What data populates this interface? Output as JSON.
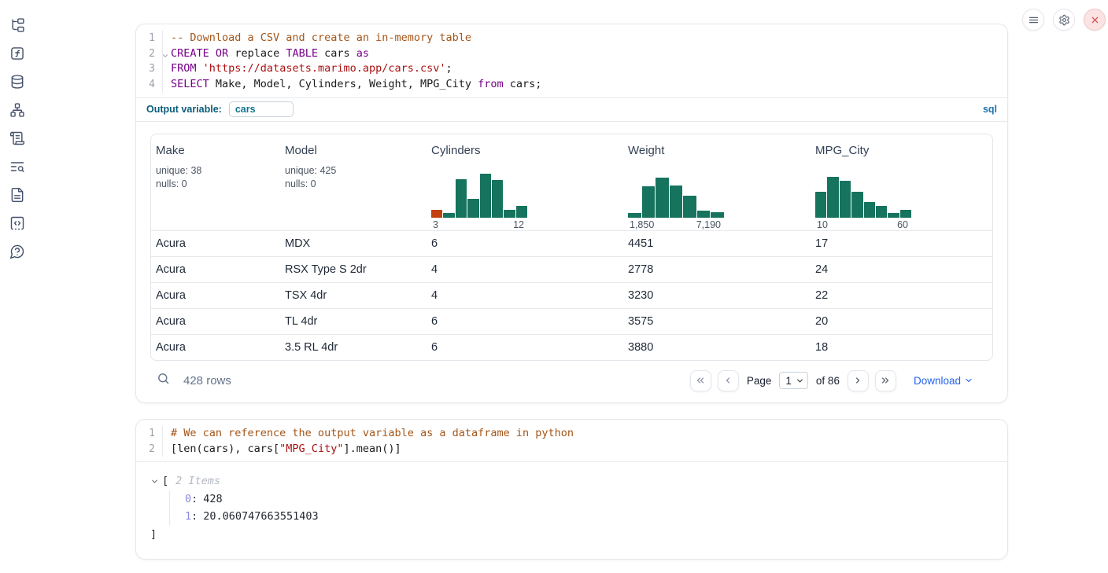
{
  "colors": {
    "hist_green": "#16735e",
    "hist_orange": "#c2410c",
    "syntax_keyword": "#770088",
    "syntax_string": "#aa1111",
    "syntax_comment": "#a35518",
    "accent_blue": "#2563eb",
    "outvar_teal": "#0e7490"
  },
  "sidebar": {
    "items": [
      {
        "name": "file-explorer"
      },
      {
        "name": "variables"
      },
      {
        "name": "datasources"
      },
      {
        "name": "dependency-graph"
      },
      {
        "name": "logs"
      },
      {
        "name": "outline-search"
      },
      {
        "name": "documentation"
      },
      {
        "name": "snippets"
      },
      {
        "name": "help"
      }
    ]
  },
  "sql_cell": {
    "lines": [
      {
        "num": "1",
        "tokens": [
          {
            "c": "c",
            "t": "-- Download a CSV and create an in-memory table"
          }
        ]
      },
      {
        "num": "2",
        "tokens": [
          {
            "c": "k",
            "t": "CREATE"
          },
          {
            "c": "p",
            "t": " "
          },
          {
            "c": "k",
            "t": "OR"
          },
          {
            "c": "p",
            "t": " replace "
          },
          {
            "c": "k",
            "t": "TABLE"
          },
          {
            "c": "p",
            "t": " cars "
          },
          {
            "c": "k",
            "t": "as"
          }
        ]
      },
      {
        "num": "3",
        "tokens": [
          {
            "c": "k",
            "t": "FROM"
          },
          {
            "c": "p",
            "t": " "
          },
          {
            "c": "s",
            "t": "'https://datasets.marimo.app/cars.csv'"
          },
          {
            "c": "p",
            "t": ";"
          }
        ]
      },
      {
        "num": "4",
        "tokens": [
          {
            "c": "k",
            "t": "SELECT"
          },
          {
            "c": "p",
            "t": " Make, Model, Cylinders, Weight, MPG_City "
          },
          {
            "c": "k",
            "t": "from"
          },
          {
            "c": "p",
            "t": " cars;"
          }
        ]
      }
    ],
    "output_variable_label": "Output variable:",
    "output_variable_value": "cars",
    "language_tag": "sql"
  },
  "chart_data": [
    {
      "type": "bar",
      "title": "Cylinders",
      "x_min_label": "3",
      "x_max_label": "12",
      "bars": [
        {
          "h": 0.18,
          "color": "#c2410c"
        },
        {
          "h": 0.1,
          "color": "#16735e"
        },
        {
          "h": 0.88,
          "color": "#16735e"
        },
        {
          "h": 0.42,
          "color": "#16735e"
        },
        {
          "h": 1.0,
          "color": "#16735e"
        },
        {
          "h": 0.85,
          "color": "#16735e"
        },
        {
          "h": 0.18,
          "color": "#16735e"
        },
        {
          "h": 0.26,
          "color": "#16735e"
        }
      ]
    },
    {
      "type": "bar",
      "title": "Weight",
      "x_min_label": "1,850",
      "x_max_label": "7,190",
      "bars": [
        {
          "h": 0.1,
          "color": "#16735e"
        },
        {
          "h": 0.72,
          "color": "#16735e"
        },
        {
          "h": 0.9,
          "color": "#16735e"
        },
        {
          "h": 0.73,
          "color": "#16735e"
        },
        {
          "h": 0.5,
          "color": "#16735e"
        },
        {
          "h": 0.15,
          "color": "#16735e"
        },
        {
          "h": 0.12,
          "color": "#16735e"
        }
      ]
    },
    {
      "type": "bar",
      "title": "MPG_City",
      "x_min_label": "10",
      "x_max_label": "60",
      "bars": [
        {
          "h": 0.58,
          "color": "#16735e"
        },
        {
          "h": 0.92,
          "color": "#16735e"
        },
        {
          "h": 0.84,
          "color": "#16735e"
        },
        {
          "h": 0.58,
          "color": "#16735e"
        },
        {
          "h": 0.36,
          "color": "#16735e"
        },
        {
          "h": 0.27,
          "color": "#16735e"
        },
        {
          "h": 0.1,
          "color": "#16735e"
        },
        {
          "h": 0.17,
          "color": "#16735e"
        }
      ]
    }
  ],
  "table": {
    "columns": [
      {
        "title": "Make",
        "unique": "unique: 38",
        "nulls": "nulls: 0"
      },
      {
        "title": "Model",
        "unique": "unique: 425",
        "nulls": "nulls: 0"
      },
      {
        "title": "Cylinders"
      },
      {
        "title": "Weight"
      },
      {
        "title": "MPG_City"
      }
    ],
    "rows": [
      [
        "Acura",
        "MDX",
        "6",
        "4451",
        "17"
      ],
      [
        "Acura",
        "RSX Type S 2dr",
        "4",
        "2778",
        "24"
      ],
      [
        "Acura",
        "TSX 4dr",
        "4",
        "3230",
        "22"
      ],
      [
        "Acura",
        "TL 4dr",
        "6",
        "3575",
        "20"
      ],
      [
        "Acura",
        "3.5 RL 4dr",
        "6",
        "3880",
        "18"
      ]
    ],
    "footer": {
      "rows_label": "428 rows",
      "page_label": "Page",
      "page_value": "1",
      "of_label": "of 86",
      "download_label": "Download"
    }
  },
  "python_cell": {
    "lines": [
      {
        "num": "1",
        "tokens": [
          {
            "c": "c",
            "t": "# We can reference the output variable as a dataframe in python"
          }
        ]
      },
      {
        "num": "2",
        "tokens": [
          {
            "c": "p",
            "t": "[len(cars), cars["
          },
          {
            "c": "s",
            "t": "\"MPG_City\""
          },
          {
            "c": "p",
            "t": "].mean()]"
          }
        ]
      }
    ],
    "output": {
      "bracket_open": "[",
      "items_label": "2 Items",
      "items": [
        {
          "key": "0",
          "sep": ":",
          "value": "428"
        },
        {
          "key": "1",
          "sep": ":",
          "value": "20.060747663551403"
        }
      ],
      "bracket_close": "]"
    }
  }
}
